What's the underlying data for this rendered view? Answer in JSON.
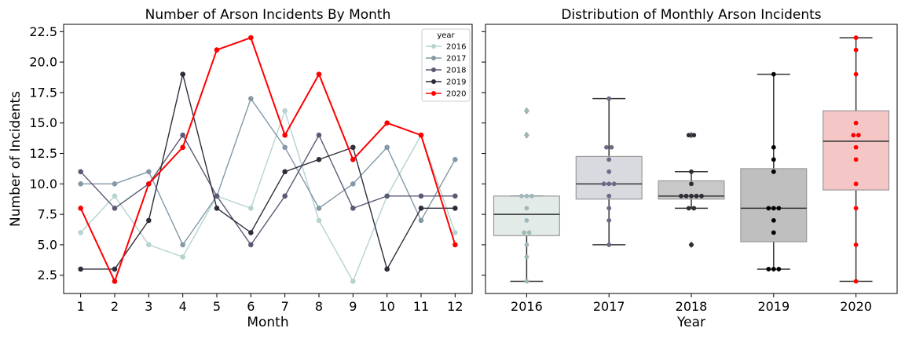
{
  "chart_data": [
    {
      "type": "line",
      "title": "Number of Arson Incidents By Month",
      "xlabel": "Month",
      "ylabel": "Number of Incidents",
      "x": [
        1,
        2,
        3,
        4,
        5,
        6,
        7,
        8,
        9,
        10,
        11,
        12
      ],
      "x_tick_labels": [
        "1",
        "2",
        "3",
        "4",
        "5",
        "6",
        "7",
        "8",
        "9",
        "10",
        "11",
        "12"
      ],
      "ylim": [
        1.0,
        23.1
      ],
      "y_ticks": [
        2.5,
        5.0,
        7.5,
        10.0,
        12.5,
        15.0,
        17.5,
        20.0,
        22.5
      ],
      "y_tick_labels": [
        "2.5",
        "5.0",
        "7.5",
        "10.0",
        "12.5",
        "15.0",
        "17.5",
        "20.0",
        "22.5"
      ],
      "legend": {
        "title": "year",
        "placement": "top-right"
      },
      "series": [
        {
          "name": "2016",
          "color": "#b5d3d0",
          "values": [
            6,
            9,
            5,
            4,
            9,
            8,
            16,
            7,
            2,
            9,
            14,
            6
          ]
        },
        {
          "name": "2017",
          "color": "#8498a5",
          "values": [
            10,
            10,
            11,
            5,
            9,
            17,
            13,
            8,
            10,
            13,
            7,
            12
          ]
        },
        {
          "name": "2018",
          "color": "#5b5a74",
          "values": [
            11,
            8,
            10,
            14,
            9,
            5,
            9,
            14,
            8,
            9,
            9,
            9
          ]
        },
        {
          "name": "2019",
          "color": "#2f2c3c",
          "values": [
            3,
            3,
            7,
            19,
            8,
            6,
            11,
            12,
            13,
            3,
            8,
            8
          ]
        },
        {
          "name": "2020",
          "color": "#ff0000",
          "values": [
            8,
            2,
            10,
            13,
            21,
            22,
            14,
            19,
            12,
            15,
            14,
            5
          ]
        }
      ]
    },
    {
      "type": "box",
      "title": "Distribution of Monthly Arson Incidents",
      "xlabel": "Year",
      "ylabel": "",
      "categories": [
        "2016",
        "2017",
        "2018",
        "2019",
        "2020"
      ],
      "ylim": [
        1.0,
        23.1
      ],
      "boxes": [
        {
          "name": "2016",
          "q1": 5.75,
          "median": 7.5,
          "q3": 9.0,
          "whisker_low": 2,
          "whisker_high": 9,
          "outliers": [
            14,
            16
          ],
          "box_color": "#e3ebe9",
          "point_color": "#9fb8bb",
          "points": [
            6,
            9,
            5,
            4,
            9,
            8,
            16,
            7,
            2,
            9,
            14,
            6
          ]
        },
        {
          "name": "2017",
          "q1": 8.75,
          "median": 10.0,
          "q3": 12.25,
          "whisker_low": 5,
          "whisker_high": 17,
          "outliers": [],
          "box_color": "#d9d9e0",
          "point_color": "#6b6b85",
          "points": [
            10,
            10,
            11,
            5,
            9,
            17,
            13,
            8,
            10,
            13,
            7,
            12
          ]
        },
        {
          "name": "2018",
          "q1": 8.75,
          "median": 9.0,
          "q3": 10.25,
          "whisker_low": 8,
          "whisker_high": 11,
          "outliers": [
            5,
            14
          ],
          "box_color": "#c8c8c8",
          "point_color": "#2d2d35",
          "points": [
            11,
            8,
            10,
            14,
            9,
            5,
            9,
            14,
            8,
            9,
            9,
            9
          ]
        },
        {
          "name": "2019",
          "q1": 5.25,
          "median": 8.0,
          "q3": 11.25,
          "whisker_low": 3,
          "whisker_high": 19,
          "outliers": [],
          "box_color": "#bfbfbf",
          "point_color": "#000000",
          "points": [
            3,
            3,
            7,
            19,
            8,
            6,
            11,
            12,
            13,
            3,
            8,
            8
          ]
        },
        {
          "name": "2020",
          "q1": 9.5,
          "median": 13.5,
          "q3": 16.0,
          "whisker_low": 2,
          "whisker_high": 22,
          "outliers": [],
          "box_color": "#f5c6c6",
          "point_color": "#ff0000",
          "points": [
            8,
            2,
            10,
            13,
            21,
            22,
            14,
            19,
            12,
            15,
            14,
            5
          ]
        }
      ]
    }
  ]
}
